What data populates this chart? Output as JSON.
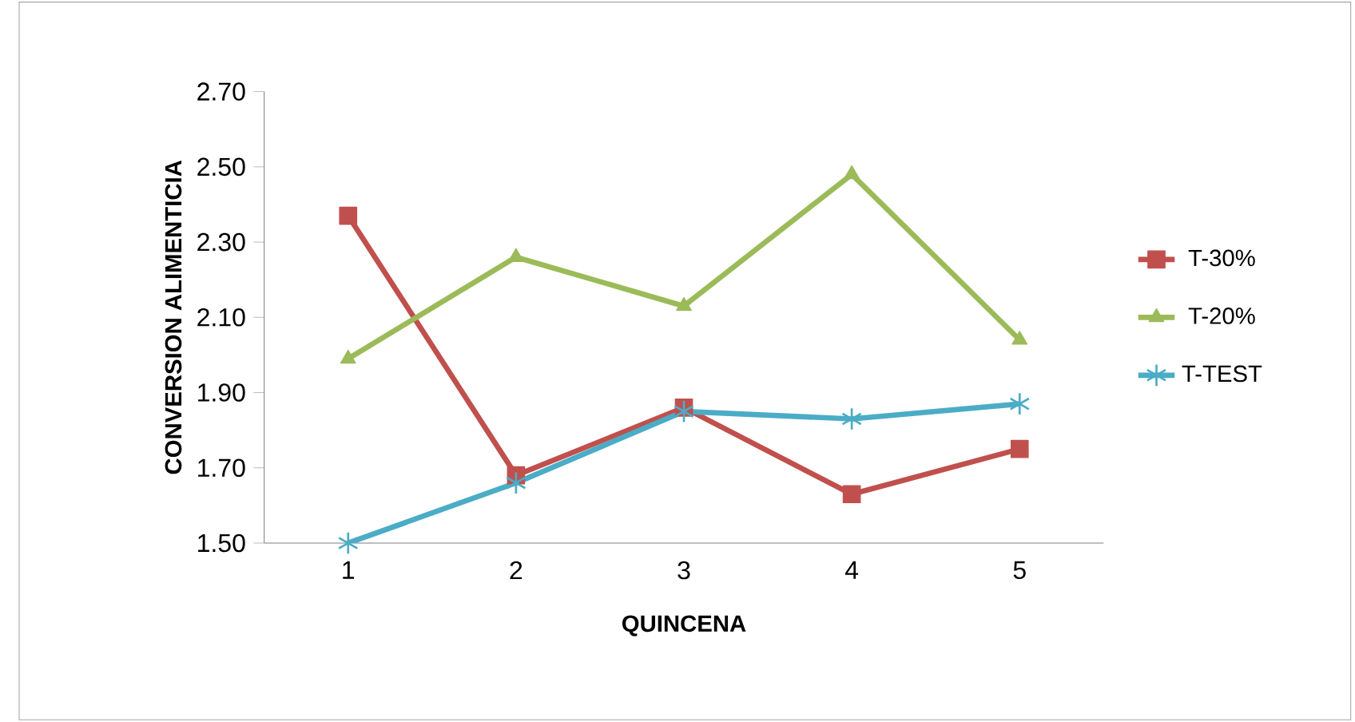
{
  "chart_data": {
    "type": "line",
    "xlabel": "QUINCENA",
    "ylabel": "CONVERSION ALIMENTICIA",
    "categories": [
      "1",
      "2",
      "3",
      "4",
      "5"
    ],
    "series": [
      {
        "name": "T-30%",
        "color": "#c0504d",
        "marker": "square",
        "values": [
          2.37,
          1.68,
          1.86,
          1.63,
          1.75
        ]
      },
      {
        "name": "T-20%",
        "color": "#9bbb59",
        "marker": "triangle",
        "values": [
          1.99,
          2.26,
          2.13,
          2.48,
          2.04
        ]
      },
      {
        "name": "T-TEST",
        "color": "#4bacc6",
        "marker": "cross",
        "values": [
          1.5,
          1.66,
          1.85,
          1.83,
          1.87
        ]
      }
    ],
    "ylim": [
      1.5,
      2.7
    ],
    "yticks": [
      {
        "value": 1.5,
        "label": "1.50"
      },
      {
        "value": 1.7,
        "label": "1.70"
      },
      {
        "value": 1.9,
        "label": "1.90"
      },
      {
        "value": 2.1,
        "label": "2.10"
      },
      {
        "value": 2.3,
        "label": "2.30"
      },
      {
        "value": 2.5,
        "label": "2.50"
      },
      {
        "value": 2.7,
        "label": "2.70"
      }
    ],
    "grid": false,
    "legend": "right",
    "line_style": "solid"
  }
}
